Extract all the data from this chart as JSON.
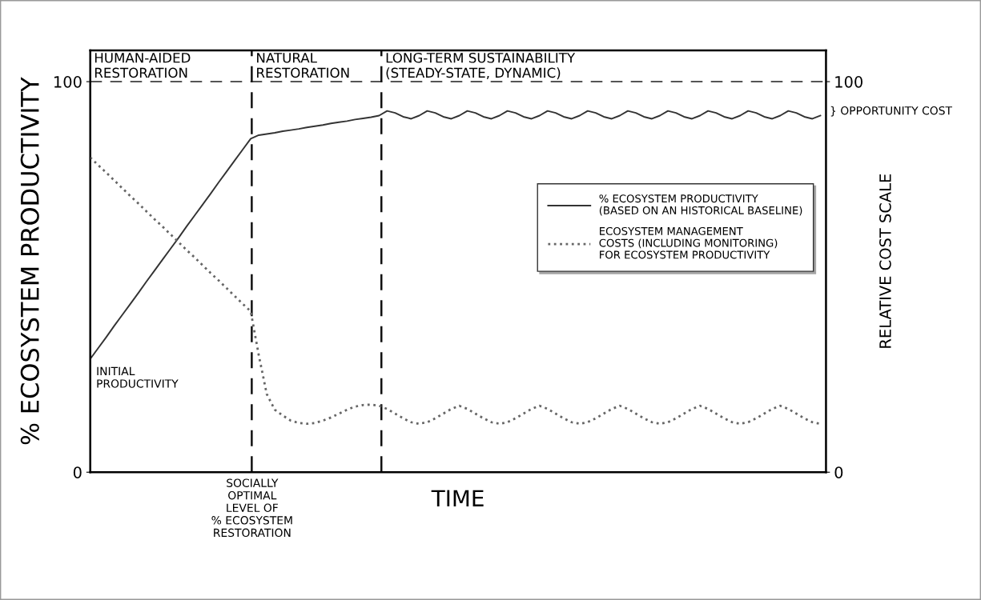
{
  "chart_data": {
    "type": "line",
    "xlabel": "TIME",
    "ylabel": "% ECOSYSTEM PRODUCTIVITY",
    "y2label": "RELATIVE COST SCALE",
    "categories": [
      null,
      null,
      null,
      null,
      null,
      null,
      null,
      null,
      null,
      null,
      null,
      null,
      null,
      null,
      null,
      null,
      null,
      null,
      null,
      null,
      null,
      null,
      null,
      null,
      null,
      null,
      null,
      null,
      null,
      null,
      null,
      null,
      null,
      null,
      null,
      null,
      null,
      null,
      null,
      null,
      null,
      null,
      null,
      null,
      null,
      null,
      null,
      null,
      null,
      null,
      null,
      null,
      null,
      null,
      null,
      null,
      null,
      null,
      null,
      null,
      null,
      null,
      null,
      null,
      null,
      null,
      null,
      null,
      null,
      null,
      null,
      null,
      null,
      null,
      null,
      null,
      null,
      null,
      null,
      null,
      null,
      null,
      null,
      null,
      null,
      null,
      null,
      null,
      null,
      null,
      null,
      null
    ],
    "series": [
      {
        "name": "% ECOSYSTEM PRODUCTIVITY\n(BASED ON AN HISTORICAL BASELINE)",
        "color": "#333333",
        "line_style": "solid",
        "values": [
          29,
          31.8,
          34.6,
          37.5,
          40.3,
          43.1,
          45.9,
          48.8,
          51.6,
          54.4,
          57.2,
          60,
          62.9,
          65.7,
          68.5,
          71.3,
          74.2,
          77,
          79.8,
          82.6,
          85.4,
          86.3,
          86.6,
          86.9,
          87.3,
          87.6,
          87.9,
          88.3,
          88.6,
          88.9,
          89.3,
          89.6,
          89.9,
          90.3,
          90.6,
          90.9,
          91.3,
          92.5,
          92.0,
          91.0,
          90.5,
          91.3,
          92.5,
          92.0,
          91.0,
          90.5,
          91.3,
          92.5,
          92.0,
          91.0,
          90.5,
          91.3,
          92.5,
          92.0,
          91.0,
          90.5,
          91.3,
          92.5,
          92.0,
          91.0,
          90.5,
          91.3,
          92.5,
          92.0,
          91.0,
          90.5,
          91.3,
          92.5,
          92.0,
          91.0,
          90.5,
          91.3,
          92.5,
          92.0,
          91.0,
          90.5,
          91.3,
          92.5,
          92.0,
          91.0,
          90.5,
          91.3,
          92.5,
          92.0,
          91.0,
          90.5,
          91.3,
          92.5,
          92.0,
          91.0,
          90.5,
          91.3
        ]
      },
      {
        "name": "ECOSYSTEM MANAGEMENT\nCOSTS (INCLUDING MONITORING)\nFOR ECOSYSTEM PRODUCTIVITY",
        "color": "#666666",
        "line_style": "dotted",
        "axis": "y2",
        "values": [
          80.6,
          78.6,
          76.7,
          74.7,
          72.7,
          70.7,
          68.8,
          66.8,
          64.8,
          62.9,
          60.9,
          58.9,
          56.9,
          55,
          53,
          51,
          49.1,
          47.1,
          45.1,
          43.1,
          41.2,
          30,
          20,
          16,
          14.5,
          13.2,
          12.6,
          12.4,
          12.6,
          13.2,
          14,
          15,
          16,
          16.8,
          17.2,
          17.3,
          17,
          16.2,
          15,
          13.8,
          12.8,
          12.4,
          12.8,
          13.8,
          15,
          16.2,
          17,
          16.2,
          15,
          13.8,
          12.8,
          12.4,
          12.8,
          13.8,
          15,
          16.2,
          17,
          16.2,
          15,
          13.8,
          12.8,
          12.4,
          12.8,
          13.8,
          15,
          16.2,
          17,
          16.2,
          15,
          13.8,
          12.8,
          12.4,
          12.8,
          13.8,
          15,
          16.2,
          17,
          16.2,
          15,
          13.8,
          12.8,
          12.4,
          12.8,
          13.8,
          15,
          16.2,
          17,
          16.2,
          15,
          13.8,
          12.8,
          12.4
        ]
      }
    ],
    "ylim": [
      0,
      108
    ],
    "yticks": [
      0,
      100
    ],
    "y2lim": [
      0,
      108
    ],
    "y2ticks": [
      0,
      100
    ],
    "ref_lines": [
      {
        "axis": "y",
        "value": 100,
        "line_style": "dashed",
        "color": "#555555"
      }
    ],
    "annotations": [
      "HUMAN-AIDED\nRESTORATION",
      "NATURAL\nRESTORATION",
      "LONG-TERM SUSTAINABILITY\n(STEADY-STATE, DYNAMIC)",
      "SOCIALLY\nOPTIMAL\nLEVEL OF\n% ECOSYSTEM\nRESTORATION",
      "INITIAL\nPRODUCTIVITY",
      "} OPPORTUNITY COST"
    ],
    "legend": "right",
    "grid": false,
    "marker": "none"
  }
}
